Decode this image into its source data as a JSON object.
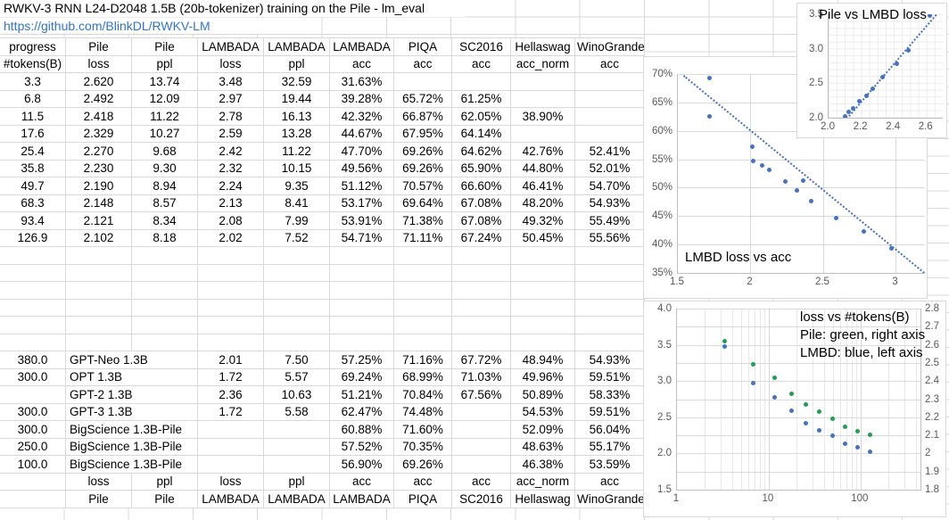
{
  "sheet": {
    "title": "RWKV-3 RNN L24-D2048 1.5B (20b-tokenizer) training on the Pile - lm_eval",
    "link": "https://github.com/BlinkDL/RWKV-LM"
  },
  "table": {
    "header_row1": [
      "progress",
      "Pile",
      "Pile",
      "LAMBADA",
      "LAMBADA",
      "LAMBADA",
      "PIQA",
      "SC2016",
      "Hellaswag",
      "WinoGrande"
    ],
    "header_row2": [
      "#tokens(B)",
      "loss",
      "ppl",
      "loss",
      "ppl",
      "acc",
      "acc",
      "acc",
      "acc_norm",
      "acc"
    ],
    "rwkv_rows": [
      [
        "3.3",
        "2.620",
        "13.74",
        "3.48",
        "32.59",
        "31.63%",
        "",
        "",
        "",
        ""
      ],
      [
        "6.8",
        "2.492",
        "12.09",
        "2.97",
        "19.44",
        "39.28%",
        "65.72%",
        "61.25%",
        "",
        ""
      ],
      [
        "11.5",
        "2.418",
        "11.22",
        "2.78",
        "16.13",
        "42.32%",
        "66.87%",
        "62.05%",
        "38.90%",
        ""
      ],
      [
        "17.6",
        "2.329",
        "10.27",
        "2.59",
        "13.28",
        "44.67%",
        "67.95%",
        "64.14%",
        "",
        ""
      ],
      [
        "25.4",
        "2.270",
        "9.68",
        "2.42",
        "11.22",
        "47.70%",
        "69.26%",
        "64.62%",
        "42.76%",
        "52.41%"
      ],
      [
        "35.8",
        "2.230",
        "9.30",
        "2.32",
        "10.15",
        "49.56%",
        "69.26%",
        "65.90%",
        "44.80%",
        "52.01%"
      ],
      [
        "49.7",
        "2.190",
        "8.94",
        "2.24",
        "9.35",
        "51.12%",
        "70.57%",
        "66.60%",
        "46.41%",
        "54.70%"
      ],
      [
        "68.3",
        "2.148",
        "8.57",
        "2.13",
        "8.41",
        "53.17%",
        "69.64%",
        "67.08%",
        "48.20%",
        "54.93%"
      ],
      [
        "93.4",
        "2.121",
        "8.34",
        "2.08",
        "7.99",
        "53.91%",
        "71.38%",
        "67.08%",
        "49.32%",
        "55.49%"
      ],
      [
        "126.9",
        "2.102",
        "8.18",
        "2.02",
        "7.52",
        "54.71%",
        "71.11%",
        "67.24%",
        "50.45%",
        "55.56%"
      ]
    ],
    "blank_rows": 6,
    "comparison_rows": [
      [
        "380.0",
        "GPT-Neo 1.3B",
        "",
        "2.01",
        "7.50",
        "57.25%",
        "71.16%",
        "67.72%",
        "48.94%",
        "54.93%"
      ],
      [
        "300.0",
        "OPT 1.3B",
        "",
        "1.72",
        "5.57",
        "69.24%",
        "68.99%",
        "71.03%",
        "49.96%",
        "59.51%"
      ],
      [
        "",
        "GPT-2 1.3B",
        "",
        "2.36",
        "10.63",
        "51.21%",
        "70.84%",
        "67.56%",
        "50.89%",
        "58.33%"
      ],
      [
        "300.0",
        "GPT-3 1.3B",
        "",
        "1.72",
        "5.58",
        "62.47%",
        "74.48%",
        "",
        "54.53%",
        "59.51%"
      ],
      [
        "300.0",
        "BigScience 1.3B-Pile",
        "",
        "",
        "",
        "60.88%",
        "71.60%",
        "",
        "52.09%",
        "56.04%"
      ],
      [
        "250.0",
        "BigScience 1.3B-Pile",
        "",
        "",
        "",
        "57.52%",
        "70.35%",
        "",
        "48.63%",
        "55.17%"
      ],
      [
        "100.0",
        "BigScience 1.3B-Pile",
        "",
        "",
        "",
        "56.90%",
        "69.26%",
        "",
        "46.38%",
        "53.59%"
      ]
    ],
    "footer_row1": [
      "",
      "loss",
      "ppl",
      "loss",
      "ppl",
      "acc",
      "acc",
      "acc",
      "acc_norm",
      "acc"
    ],
    "footer_row2": [
      "",
      "Pile",
      "Pile",
      "LAMBADA",
      "LAMBADA",
      "LAMBADA",
      "PIQA",
      "SC2016",
      "Hellaswag",
      "WinoGrande"
    ]
  },
  "colors": {
    "blue": "#4472c4",
    "green": "#1ea050",
    "link": "#2e75d2",
    "gridline": "#d9d9d9"
  },
  "chart_data": [
    {
      "type": "scatter",
      "title": "Pile vs LMBD loss",
      "xlim": [
        2.0,
        2.7
      ],
      "ylim": [
        2.0,
        3.5
      ],
      "x_ticks": [
        [
          2.0,
          "2.0"
        ],
        [
          2.2,
          "2.2"
        ],
        [
          2.4,
          "2.4"
        ],
        [
          2.6,
          "2.6"
        ]
      ],
      "y_ticks": [
        [
          3.5,
          "3.5"
        ],
        [
          3.0,
          "3.0"
        ],
        [
          2.5,
          "2.5"
        ],
        [
          2.0,
          "2.0"
        ]
      ],
      "mesh_grid": true,
      "series": [
        {
          "color": "#4472c4",
          "yaxis": "ylim",
          "points": [
            [
              2.62,
              3.48
            ],
            [
              2.492,
              2.97
            ],
            [
              2.418,
              2.78
            ],
            [
              2.329,
              2.59
            ],
            [
              2.27,
              2.42
            ],
            [
              2.23,
              2.32
            ],
            [
              2.19,
              2.24
            ],
            [
              2.148,
              2.13
            ],
            [
              2.121,
              2.08
            ],
            [
              2.102,
              2.02
            ]
          ]
        }
      ],
      "trend": {
        "color": "#4472c4",
        "p1": [
          2.08,
          1.92
        ],
        "p2": [
          2.68,
          3.57
        ]
      }
    },
    {
      "type": "scatter",
      "title": "LMBD loss vs acc",
      "xlim": [
        1.5,
        3.2
      ],
      "ylim": [
        0.35,
        0.7
      ],
      "x_ticks": [
        [
          1.5,
          "1.5"
        ],
        [
          2,
          "2"
        ],
        [
          2.5,
          "2.5"
        ],
        [
          3,
          "3"
        ]
      ],
      "y_ticks": [
        [
          0.7,
          "70%"
        ],
        [
          0.65,
          "65%"
        ],
        [
          0.6,
          "60%"
        ],
        [
          0.55,
          "55%"
        ],
        [
          0.5,
          "50%"
        ],
        [
          0.45,
          "45%"
        ],
        [
          0.4,
          "40%"
        ],
        [
          0.35,
          "35%"
        ]
      ],
      "grid_v": true,
      "grid_h_ticks": "y_ticks",
      "grid_h_lim": "ylim",
      "series": [
        {
          "color": "#4472c4",
          "yaxis": "ylim",
          "points": [
            [
              3.48,
              0.3163
            ],
            [
              2.97,
              0.3928
            ],
            [
              2.78,
              0.4232
            ],
            [
              2.59,
              0.4467
            ],
            [
              2.42,
              0.477
            ],
            [
              2.32,
              0.4956
            ],
            [
              2.24,
              0.5112
            ],
            [
              2.13,
              0.5317
            ],
            [
              2.08,
              0.5391
            ],
            [
              2.02,
              0.5471
            ],
            [
              2.01,
              0.5725
            ],
            [
              1.72,
              0.6924
            ],
            [
              2.36,
              0.5121
            ],
            [
              1.72,
              0.6247
            ]
          ]
        }
      ],
      "trend": {
        "color": "#4472c4",
        "p1": [
          1.54,
          0.699
        ],
        "p2": [
          3.21,
          0.349
        ]
      }
    },
    {
      "type": "scatter",
      "title": "loss vs #tokens(B)",
      "legend": [
        "Pile: green, right axis",
        "LMBD: blue, left axis"
      ],
      "x_log": true,
      "xlim": [
        1,
        450
      ],
      "ylim": [
        1.5,
        4.0
      ],
      "ylim_right": [
        1.8,
        2.8
      ],
      "x_ticks": [
        [
          1,
          "1"
        ],
        [
          10,
          "10"
        ],
        [
          100,
          "100"
        ]
      ],
      "y_ticks": [
        [
          4.0,
          "4.0"
        ],
        [
          3.5,
          "3.5"
        ],
        [
          3.0,
          "3.0"
        ],
        [
          2.5,
          "2.5"
        ],
        [
          2.0,
          "2.0"
        ],
        [
          1.5,
          "1.5"
        ]
      ],
      "y_ticks_right": [
        [
          2.8,
          "2.8"
        ],
        [
          2.7,
          "2.7"
        ],
        [
          2.6,
          "2.6"
        ],
        [
          2.5,
          "2.5"
        ],
        [
          2.4,
          "2.4"
        ],
        [
          2.3,
          "2.3"
        ],
        [
          2.2,
          "2.2"
        ],
        [
          2.1,
          "2.1"
        ],
        [
          2.0,
          "2"
        ],
        [
          1.9,
          "1.9"
        ],
        [
          1.8,
          "1.8"
        ]
      ],
      "grid_v": true,
      "grid_h_ticks": "y_ticks_right",
      "grid_h_lim": "ylim_right",
      "series": [
        {
          "name": "Pile",
          "color": "#1ea050",
          "yaxis": "ylim_right",
          "points": [
            [
              3.3,
              2.62
            ],
            [
              6.8,
              2.492
            ],
            [
              11.5,
              2.418
            ],
            [
              17.6,
              2.329
            ],
            [
              25.4,
              2.27
            ],
            [
              35.8,
              2.23
            ],
            [
              49.7,
              2.19
            ],
            [
              68.3,
              2.148
            ],
            [
              93.4,
              2.121
            ],
            [
              126.9,
              2.102
            ]
          ]
        },
        {
          "name": "LMBD",
          "color": "#4472c4",
          "yaxis": "ylim",
          "points": [
            [
              3.3,
              3.48
            ],
            [
              6.8,
              2.97
            ],
            [
              11.5,
              2.78
            ],
            [
              17.6,
              2.59
            ],
            [
              25.4,
              2.42
            ],
            [
              35.8,
              2.32
            ],
            [
              49.7,
              2.24
            ],
            [
              68.3,
              2.13
            ],
            [
              93.4,
              2.08
            ],
            [
              126.9,
              2.02
            ]
          ]
        }
      ]
    }
  ]
}
